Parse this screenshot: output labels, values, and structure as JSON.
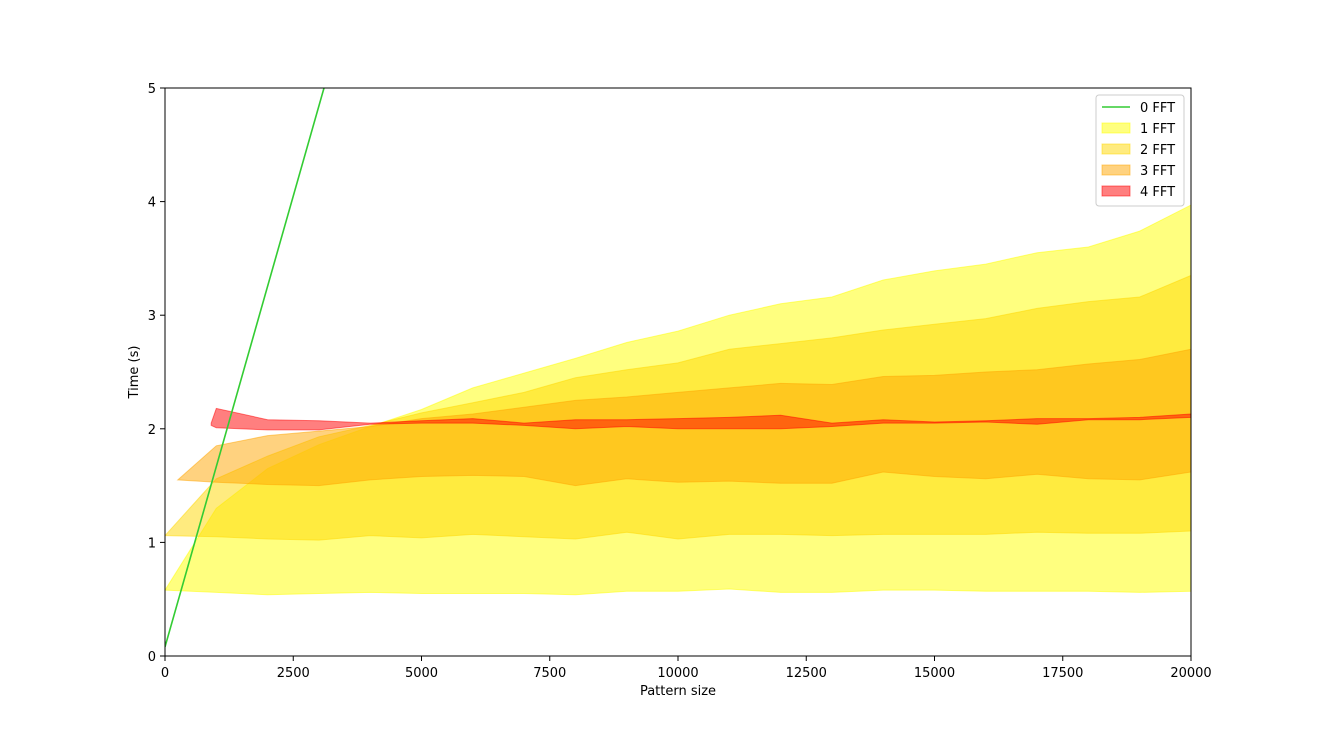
{
  "chart_data": {
    "type": "area",
    "xlabel": "Pattern size",
    "ylabel": "Time (s)",
    "xlim": [
      0,
      20000
    ],
    "ylim": [
      0,
      5
    ],
    "xticks": [
      0,
      2500,
      5000,
      7500,
      10000,
      12500,
      15000,
      17500,
      20000
    ],
    "yticks": [
      0,
      1,
      2,
      3,
      4,
      5
    ],
    "grid": false,
    "legend_position": "top-right",
    "series": [
      {
        "name": "0 FFT",
        "kind": "line",
        "color": "#33cc33",
        "x": [
          0,
          3100
        ],
        "y": [
          0.08,
          5.0
        ]
      },
      {
        "name": "1 FFT",
        "kind": "band",
        "color": "#ffff00",
        "opacity": 0.5,
        "x": [
          0,
          1000,
          2000,
          3000,
          4000,
          5000,
          6000,
          7000,
          8000,
          9000,
          10000,
          11000,
          12000,
          13000,
          14000,
          15000,
          16000,
          17000,
          18000,
          19000,
          20000
        ],
        "upper": [
          0.58,
          1.3,
          1.65,
          1.86,
          2.02,
          2.17,
          2.36,
          2.49,
          2.62,
          2.76,
          2.86,
          3.0,
          3.1,
          3.16,
          3.31,
          3.39,
          3.45,
          3.55,
          3.6,
          3.74,
          3.97
        ],
        "lower": [
          0.58,
          0.56,
          0.54,
          0.55,
          0.56,
          0.55,
          0.55,
          0.55,
          0.54,
          0.57,
          0.57,
          0.59,
          0.56,
          0.56,
          0.58,
          0.58,
          0.57,
          0.57,
          0.57,
          0.56,
          0.57
        ]
      },
      {
        "name": "2 FFT",
        "kind": "band",
        "color": "#ffd700",
        "opacity": 0.5,
        "x": [
          0,
          1000,
          2000,
          3000,
          4000,
          5000,
          6000,
          7000,
          8000,
          9000,
          10000,
          11000,
          12000,
          13000,
          14000,
          15000,
          16000,
          17000,
          18000,
          19000,
          20000
        ],
        "upper": [
          1.06,
          1.56,
          1.76,
          1.93,
          2.03,
          2.14,
          2.23,
          2.32,
          2.45,
          2.52,
          2.58,
          2.7,
          2.75,
          2.8,
          2.87,
          2.92,
          2.97,
          3.06,
          3.12,
          3.16,
          3.35
        ],
        "lower": [
          1.06,
          1.05,
          1.03,
          1.02,
          1.06,
          1.04,
          1.07,
          1.05,
          1.03,
          1.09,
          1.03,
          1.07,
          1.07,
          1.06,
          1.07,
          1.07,
          1.07,
          1.09,
          1.08,
          1.08,
          1.1
        ]
      },
      {
        "name": "3 FFT",
        "kind": "band",
        "color": "#ffa500",
        "opacity": 0.5,
        "x": [
          250,
          1000,
          2000,
          3000,
          4000,
          5000,
          6000,
          7000,
          8000,
          9000,
          10000,
          11000,
          12000,
          13000,
          14000,
          15000,
          16000,
          17000,
          18000,
          19000,
          20000
        ],
        "upper": [
          1.55,
          1.85,
          1.94,
          1.98,
          2.02,
          2.09,
          2.13,
          2.19,
          2.25,
          2.28,
          2.32,
          2.36,
          2.4,
          2.39,
          2.46,
          2.47,
          2.5,
          2.52,
          2.57,
          2.61,
          2.7
        ],
        "lower": [
          1.55,
          1.53,
          1.51,
          1.5,
          1.55,
          1.58,
          1.59,
          1.58,
          1.5,
          1.56,
          1.53,
          1.54,
          1.52,
          1.52,
          1.62,
          1.58,
          1.56,
          1.6,
          1.56,
          1.55,
          1.62
        ]
      },
      {
        "name": "4 FFT",
        "kind": "band",
        "color": "#ff0000",
        "opacity": 0.5,
        "x": [
          900,
          1000,
          2000,
          3000,
          4000,
          5000,
          6000,
          7000,
          8000,
          9000,
          10000,
          11000,
          12000,
          13000,
          14000,
          15000,
          16000,
          17000,
          18000,
          19000,
          20000
        ],
        "upper": [
          2.05,
          2.18,
          2.08,
          2.07,
          2.05,
          2.07,
          2.09,
          2.05,
          2.08,
          2.08,
          2.09,
          2.1,
          2.12,
          2.05,
          2.08,
          2.06,
          2.07,
          2.09,
          2.09,
          2.1,
          2.13
        ],
        "lower": [
          2.03,
          2.01,
          1.99,
          1.99,
          2.04,
          2.05,
          2.05,
          2.03,
          2.0,
          2.02,
          2.0,
          2.0,
          2.0,
          2.02,
          2.05,
          2.05,
          2.06,
          2.04,
          2.08,
          2.08,
          2.1
        ]
      }
    ]
  }
}
